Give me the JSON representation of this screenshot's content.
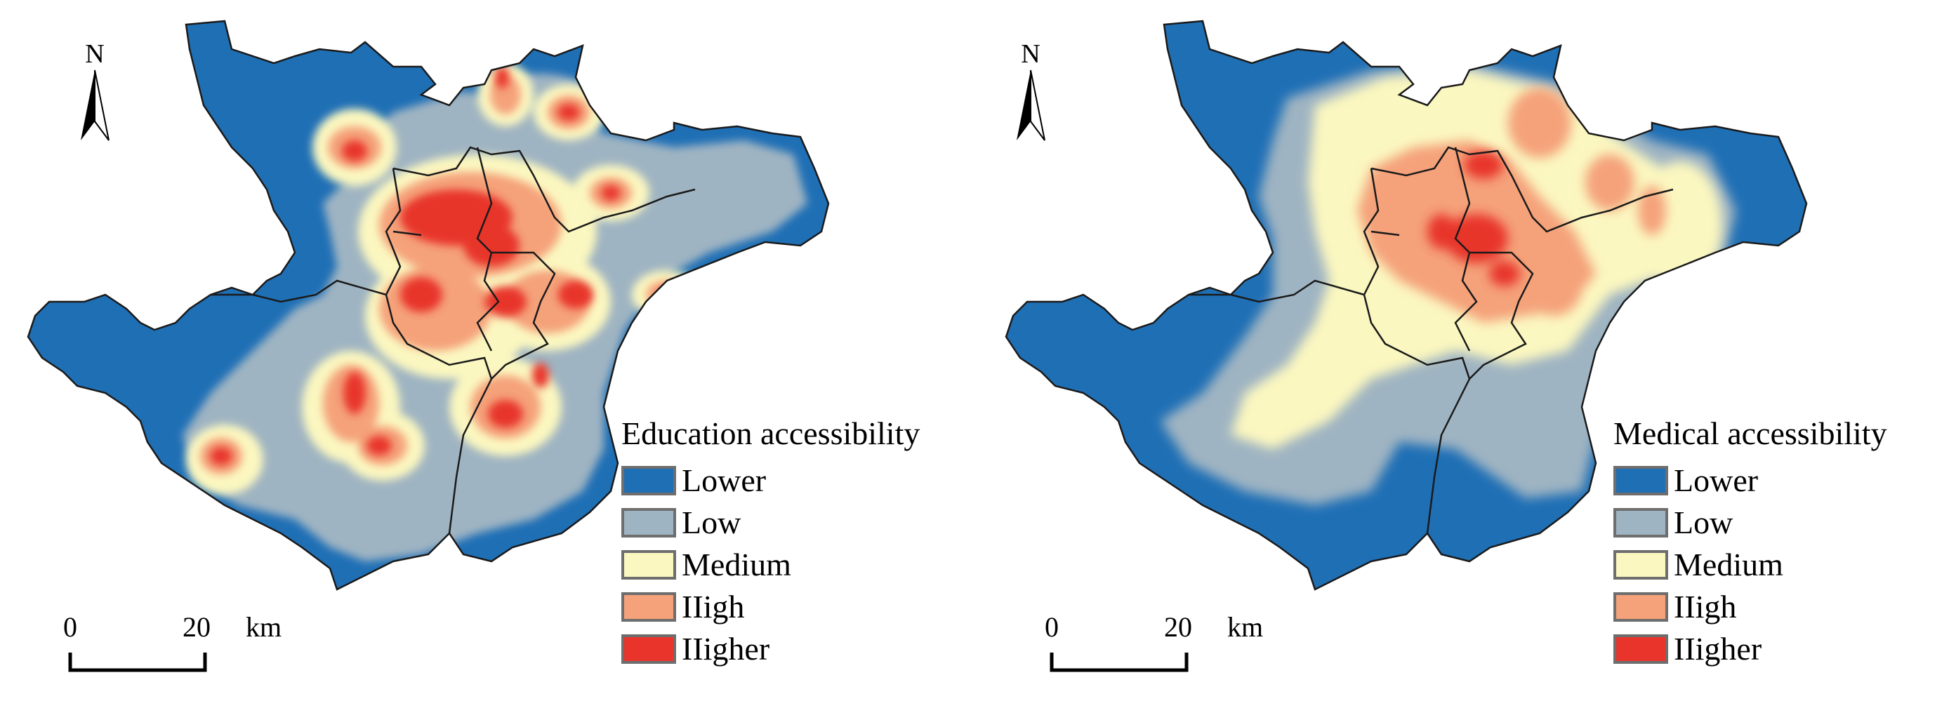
{
  "panels": [
    {
      "north_label": "N",
      "legend_title": "Education accessibility",
      "classes": [
        {
          "label": "Lower",
          "color": "#1f6fb5"
        },
        {
          "label": "Low",
          "color": "#9fb4c2"
        },
        {
          "label": "Medium",
          "color": "#fbf7c0"
        },
        {
          "label": "IIigh",
          "color": "#f5a27a"
        },
        {
          "label": "IIigher",
          "color": "#e8342b"
        }
      ],
      "scale": {
        "start": "0",
        "end": "20",
        "unit": "km"
      }
    },
    {
      "north_label": "N",
      "legend_title": "Medical accessibility",
      "classes": [
        {
          "label": "Lower",
          "color": "#1f6fb5"
        },
        {
          "label": "Low",
          "color": "#9fb4c2"
        },
        {
          "label": "Medium",
          "color": "#fbf7c0"
        },
        {
          "label": "IIigh",
          "color": "#f5a27a"
        },
        {
          "label": "IIigher",
          "color": "#e8342b"
        }
      ],
      "scale": {
        "start": "0",
        "end": "20",
        "unit": "km"
      }
    }
  ]
}
